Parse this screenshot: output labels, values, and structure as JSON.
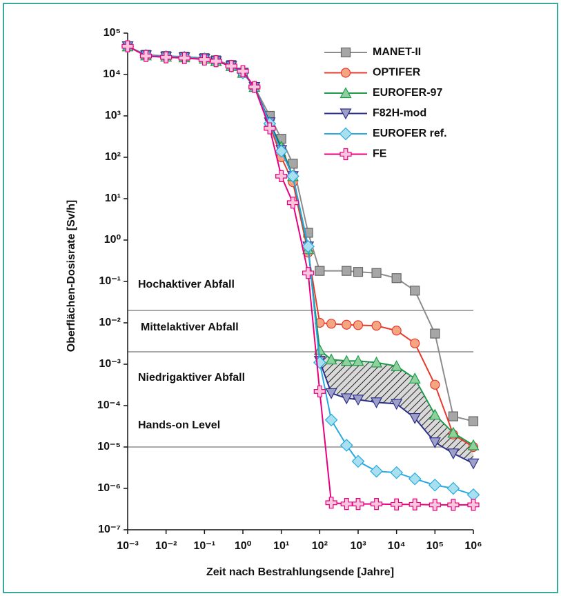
{
  "chart_data": {
    "type": "line",
    "xlabel": "Zeit nach Bestrahlungsende [Jahre]",
    "ylabel": "Oberflächen-Dosisrate [Sv/h]",
    "log_x": true,
    "log_y": true,
    "xlim": [
      0.001,
      1000000
    ],
    "ylim": [
      1e-07,
      100000
    ],
    "xticks": [
      {
        "value": 0.001,
        "label": "10⁻³"
      },
      {
        "value": 0.01,
        "label": "10⁻²"
      },
      {
        "value": 0.1,
        "label": "10⁻¹"
      },
      {
        "value": 1,
        "label": "10⁰"
      },
      {
        "value": 10,
        "label": "10¹"
      },
      {
        "value": 100,
        "label": "10²"
      },
      {
        "value": 1000,
        "label": "10³"
      },
      {
        "value": 10000,
        "label": "10⁴"
      },
      {
        "value": 100000,
        "label": "10⁵"
      },
      {
        "value": 1000000,
        "label": "10⁶"
      }
    ],
    "yticks": [
      {
        "value": 1e-07,
        "label": "10⁻⁷"
      },
      {
        "value": 1e-06,
        "label": "10⁻⁶"
      },
      {
        "value": 1e-05,
        "label": "10⁻⁵"
      },
      {
        "value": 0.0001,
        "label": "10⁻⁴"
      },
      {
        "value": 0.001,
        "label": "10⁻³"
      },
      {
        "value": 0.01,
        "label": "10⁻²"
      },
      {
        "value": 0.1,
        "label": "10⁻¹"
      },
      {
        "value": 1,
        "label": "10⁰"
      },
      {
        "value": 10,
        "label": "10¹"
      },
      {
        "value": 100,
        "label": "10²"
      },
      {
        "value": 1000,
        "label": "10³"
      },
      {
        "value": 10000,
        "label": "10⁴"
      },
      {
        "value": 100000,
        "label": "10⁵"
      }
    ],
    "reference_lines": [
      0.02,
      0.002,
      1e-05
    ],
    "annotations": [
      "Hochaktiver Abfall",
      "Mittelaktiver Abfall",
      "Niedrigaktiver Abfall",
      "Hands-on Level"
    ],
    "legend": "upper right",
    "series": [
      {
        "name": "MANET-II",
        "color": "#8c8c8c",
        "marker": "square",
        "marker_fill": "#a6a6a6",
        "x": [
          0.001,
          0.003,
          0.01,
          0.03,
          0.1,
          0.2,
          0.5,
          1,
          2,
          5,
          10,
          20,
          50,
          100,
          500,
          1000,
          3000,
          10000,
          30000,
          100000,
          300000,
          1000000
        ],
        "values": [
          48000,
          30000,
          28000,
          27000,
          25000,
          22000,
          17000,
          11000,
          5000,
          1000,
          280,
          70,
          1.5,
          0.18,
          0.18,
          0.17,
          0.16,
          0.12,
          0.06,
          0.0055,
          5.5e-05,
          4.2e-05
        ]
      },
      {
        "name": "OPTIFER",
        "color": "#e8392c",
        "marker": "circle",
        "marker_fill": "#f4a582",
        "x": [
          0.001,
          0.003,
          0.01,
          0.03,
          0.1,
          0.2,
          0.5,
          1,
          2,
          5,
          10,
          20,
          50,
          100,
          200,
          500,
          1000,
          3000,
          10000,
          30000,
          100000,
          300000,
          1000000
        ],
        "values": [
          48000,
          29000,
          27000,
          26000,
          24000,
          21000,
          16000,
          11000,
          5000,
          600,
          100,
          25,
          0.5,
          0.01,
          0.0095,
          0.009,
          0.0088,
          0.0085,
          0.0065,
          0.0032,
          0.00032,
          2e-05,
          1e-05
        ]
      },
      {
        "name": "EUROFER-97",
        "color": "#1f9a4a",
        "marker": "triangle-up",
        "marker_fill": "#8fd19e",
        "x": [
          0.001,
          0.003,
          0.01,
          0.03,
          0.1,
          0.2,
          0.5,
          1,
          2,
          5,
          10,
          20,
          50,
          100,
          200,
          500,
          1000,
          3000,
          10000,
          30000,
          100000,
          300000,
          1000000
        ],
        "values": [
          48000,
          29000,
          27000,
          26000,
          24000,
          21000,
          16000,
          11000,
          5000,
          700,
          180,
          35,
          0.6,
          0.0022,
          0.0013,
          0.0012,
          0.0012,
          0.0011,
          0.0009,
          0.00045,
          6e-05,
          2.2e-05,
          1.1e-05
        ]
      },
      {
        "name": "F82H-mod",
        "color": "#2b2f8a",
        "marker": "triangle-down",
        "marker_fill": "#9fa0c8",
        "x": [
          0.001,
          0.003,
          0.01,
          0.03,
          0.1,
          0.2,
          0.5,
          1,
          2,
          5,
          10,
          20,
          50,
          100,
          200,
          500,
          1000,
          3000,
          10000,
          30000,
          100000,
          300000,
          1000000
        ],
        "values": [
          48000,
          29000,
          27000,
          26000,
          24000,
          21000,
          16000,
          11000,
          5000,
          700,
          150,
          35,
          0.7,
          0.0012,
          0.0002,
          0.00015,
          0.00014,
          0.00012,
          0.00011,
          5e-05,
          1.3e-05,
          7e-06,
          4e-06
        ]
      },
      {
        "name": "EUROFER ref.",
        "color": "#27a9e1",
        "marker": "diamond",
        "marker_fill": "#a8e0f0",
        "x": [
          0.001,
          0.003,
          0.01,
          0.03,
          0.1,
          0.2,
          0.5,
          1,
          2,
          5,
          10,
          20,
          50,
          100,
          200,
          500,
          1000,
          3000,
          10000,
          30000,
          100000,
          300000,
          1000000
        ],
        "values": [
          48000,
          29000,
          27000,
          26000,
          24000,
          21000,
          16000,
          11000,
          5000,
          650,
          140,
          35,
          0.7,
          0.0011,
          4.5e-05,
          1.1e-05,
          4.5e-06,
          2.6e-06,
          2.4e-06,
          1.7e-06,
          1.2e-06,
          1e-06,
          7e-07
        ]
      },
      {
        "name": "FE",
        "color": "#e6007e",
        "marker": "plus",
        "marker_fill": "#f9c6de",
        "x": [
          0.001,
          0.003,
          0.01,
          0.03,
          0.1,
          0.2,
          0.5,
          1,
          2,
          5,
          10,
          20,
          50,
          100,
          200,
          500,
          1000,
          3000,
          10000,
          30000,
          100000,
          300000,
          1000000
        ],
        "values": [
          48000,
          28000,
          26000,
          25000,
          23000,
          21000,
          16000,
          12000,
          5000,
          500,
          35,
          8,
          0.16,
          0.00022,
          4.5e-07,
          4.2e-07,
          4.2e-07,
          4.2e-07,
          4.1e-07,
          4.1e-07,
          4e-07,
          4e-07,
          4e-07
        ]
      }
    ]
  }
}
